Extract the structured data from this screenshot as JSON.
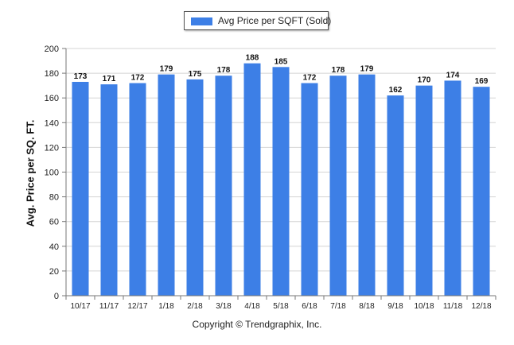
{
  "colors": {
    "bar": "#3d7fe6",
    "grid": "#d4d4d4",
    "axis": "#777777"
  },
  "legend": {
    "label": "Avg Price per SQFT (Sold)"
  },
  "copyright": "Copyright © Trendgraphix, Inc.",
  "chart_data": {
    "type": "bar",
    "title": "",
    "xlabel": "",
    "ylabel": "Avg. Price per SQ. FT.",
    "ylim": [
      0,
      200
    ],
    "yticks": [
      0,
      20,
      40,
      60,
      80,
      100,
      120,
      140,
      160,
      180,
      200
    ],
    "grid": true,
    "legend_position": "top-center",
    "categories": [
      "10/17",
      "11/17",
      "12/17",
      "1/18",
      "2/18",
      "3/18",
      "4/18",
      "5/18",
      "6/18",
      "7/18",
      "8/18",
      "9/18",
      "10/18",
      "11/18",
      "12/18"
    ],
    "series": [
      {
        "name": "Avg Price per SQFT (Sold)",
        "values": [
          173,
          171,
          172,
          179,
          175,
          178,
          188,
          185,
          172,
          178,
          179,
          162,
          170,
          174,
          169
        ]
      }
    ]
  }
}
